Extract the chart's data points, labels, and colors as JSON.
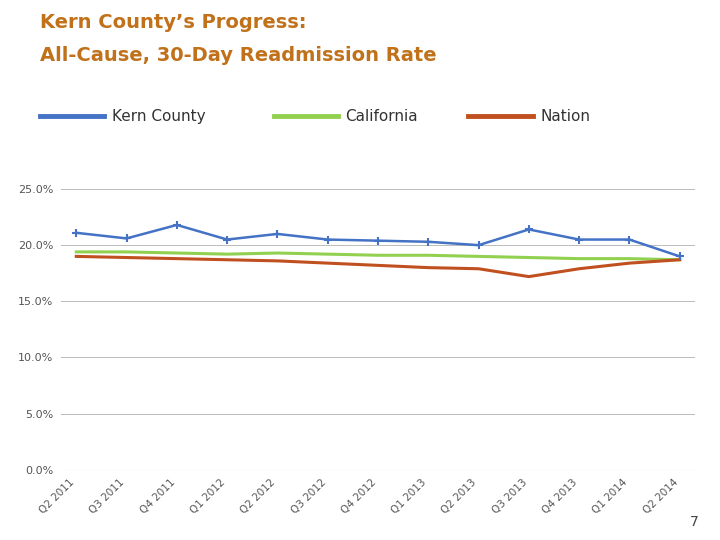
{
  "title_line1": "Kern County’s Progress:",
  "title_line2": "All-Cause, 30-Day Readmission Rate",
  "title_color": "#C0711A",
  "title_fontsize": 14,
  "x_labels": [
    "Q2 2011",
    "Q3 2011",
    "Q4 2011",
    "Q1 2012",
    "Q2 2012",
    "Q3 2012",
    "Q4 2012",
    "Q1 2013",
    "Q2 2013",
    "Q3 2013",
    "Q4 2013",
    "Q1 2014",
    "Q2 2014"
  ],
  "kern_county": [
    0.211,
    0.206,
    0.218,
    0.205,
    0.21,
    0.205,
    0.204,
    0.203,
    0.2,
    0.214,
    0.205,
    0.205,
    0.19
  ],
  "california": [
    0.194,
    0.194,
    0.193,
    0.192,
    0.193,
    0.192,
    0.191,
    0.191,
    0.19,
    0.189,
    0.188,
    0.188,
    0.187
  ],
  "nation": [
    0.19,
    0.189,
    0.188,
    0.187,
    0.186,
    0.184,
    0.182,
    0.18,
    0.179,
    0.172,
    0.179,
    0.184,
    0.187
  ],
  "kern_color": "#4472C4",
  "california_color": "#92D050",
  "nation_color": "#C0501F",
  "ylim": [
    0.0,
    0.25
  ],
  "yticks": [
    0.0,
    0.05,
    0.1,
    0.15,
    0.2,
    0.25
  ],
  "grid_color": "#BBBBBB",
  "background_color": "#FFFFFF",
  "page_number": "7",
  "legend_labels": [
    "Kern County",
    "California",
    "Nation"
  ]
}
